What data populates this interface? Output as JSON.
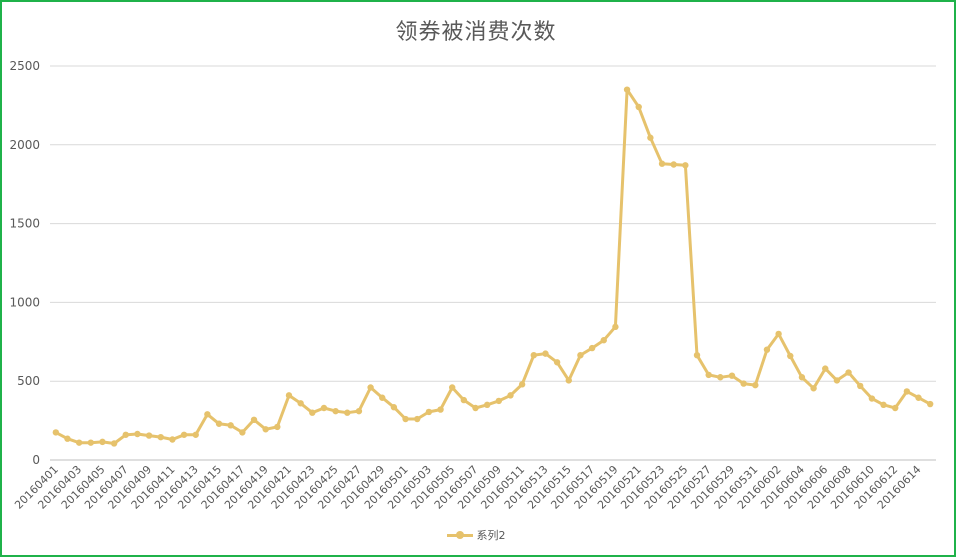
{
  "chart_data": {
    "type": "line",
    "title": "领券被消费次数",
    "xlabel": "",
    "ylabel": "",
    "ylim": [
      0,
      2500
    ],
    "yticks": [
      0,
      500,
      1000,
      1500,
      2000,
      2500
    ],
    "grid": true,
    "legend_position": "bottom",
    "color": "#e6c26c",
    "x_tick_labels": [
      "20160401",
      "20160403",
      "20160405",
      "20160407",
      "20160409",
      "20160411",
      "20160413",
      "20160415",
      "20160417",
      "20160419",
      "20160421",
      "20160423",
      "20160425",
      "20160427",
      "20160429",
      "20160501",
      "20160503",
      "20160505",
      "20160507",
      "20160509",
      "20160511",
      "20160513",
      "20160515",
      "20160517",
      "20160519",
      "20160521",
      "20160523",
      "20160525",
      "20160527",
      "20160529",
      "20160531",
      "20160602",
      "20160604",
      "20160606",
      "20160608",
      "20160610",
      "20160612",
      "20160614"
    ],
    "x": [
      "20160401",
      "20160402",
      "20160403",
      "20160404",
      "20160405",
      "20160406",
      "20160407",
      "20160408",
      "20160409",
      "20160410",
      "20160411",
      "20160412",
      "20160413",
      "20160414",
      "20160415",
      "20160416",
      "20160417",
      "20160418",
      "20160419",
      "20160420",
      "20160421",
      "20160422",
      "20160423",
      "20160424",
      "20160425",
      "20160426",
      "20160427",
      "20160428",
      "20160429",
      "20160430",
      "20160501",
      "20160502",
      "20160503",
      "20160504",
      "20160505",
      "20160506",
      "20160507",
      "20160508",
      "20160509",
      "20160510",
      "20160511",
      "20160512",
      "20160513",
      "20160514",
      "20160515",
      "20160516",
      "20160517",
      "20160518",
      "20160519",
      "20160520",
      "20160521",
      "20160522",
      "20160523",
      "20160524",
      "20160525",
      "20160526",
      "20160527",
      "20160528",
      "20160529",
      "20160530",
      "20160531",
      "20160601",
      "20160602",
      "20160603",
      "20160604",
      "20160605",
      "20160606",
      "20160607",
      "20160608",
      "20160609",
      "20160610",
      "20160611",
      "20160612",
      "20160613",
      "20160614",
      "20160615"
    ],
    "series": [
      {
        "name": "系列2",
        "values": [
          175,
          135,
          110,
          110,
          115,
          105,
          160,
          165,
          155,
          145,
          130,
          160,
          160,
          290,
          230,
          220,
          175,
          255,
          195,
          210,
          410,
          360,
          300,
          330,
          310,
          300,
          310,
          460,
          395,
          335,
          260,
          260,
          305,
          320,
          460,
          380,
          330,
          350,
          375,
          410,
          480,
          665,
          675,
          620,
          505,
          665,
          710,
          760,
          845,
          2350,
          2240,
          2045,
          1880,
          1875,
          1870,
          665,
          540,
          525,
          535,
          485,
          475,
          700,
          800,
          660,
          525,
          455,
          580,
          505,
          555,
          470,
          390,
          350,
          330,
          435,
          395,
          355
        ]
      }
    ]
  }
}
